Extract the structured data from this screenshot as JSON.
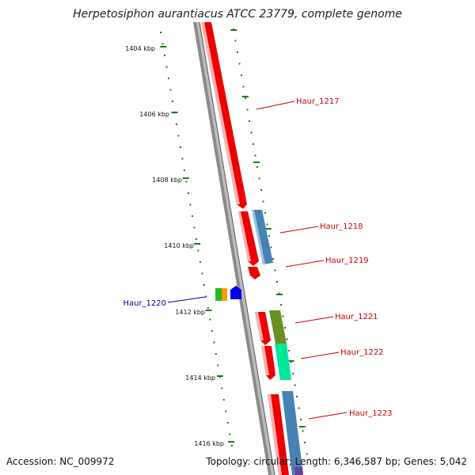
{
  "title": "Herpetosiphon aurantiacus ATCC 23779, complete genome",
  "footer": {
    "accession": "Accession: NC_009972",
    "topology": "Topology: circular; Length: 6,346,587 bp; Genes: 5,042"
  },
  "scale_ticks": [
    "1404 kbp",
    "1406 kbp",
    "1408 kbp",
    "1410 kbp",
    "1412 kbp",
    "1414 kbp",
    "1416 kbp"
  ],
  "genes": [
    {
      "label": "Haur_1217",
      "color": "#cc0000"
    },
    {
      "label": "Haur_1218",
      "color": "#cc0000"
    },
    {
      "label": "Haur_1219",
      "color": "#cc0000"
    },
    {
      "label": "Haur_1220",
      "color": "#0000aa"
    },
    {
      "label": "Haur_1221",
      "color": "#cc0000"
    },
    {
      "label": "Haur_1222",
      "color": "#cc0000"
    },
    {
      "label": "Haur_1223",
      "color": "#cc0000"
    }
  ],
  "colors": {
    "forward_cds": "#ee0000",
    "steelblue_feature": "#4682b4",
    "olive_feature": "#6b8e23",
    "mint_feature": "#00e69a",
    "tick_marks": "#1f7a1f",
    "backbone": "#888888"
  }
}
